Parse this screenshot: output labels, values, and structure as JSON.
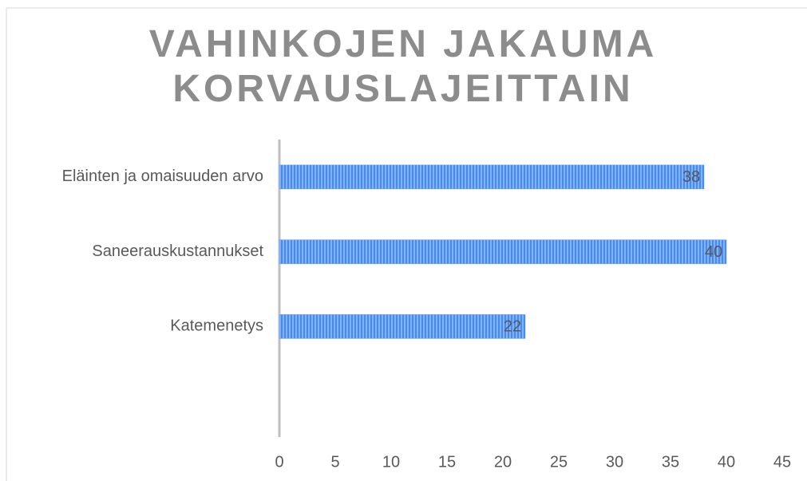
{
  "chart_data": {
    "type": "bar",
    "orientation": "horizontal",
    "title": "VAHINKOJEN JAKAUMA KORVAUSLAJEITTAIN",
    "categories": [
      "Eläinten ja omaisuuden arvo",
      "Saneerauskustannukset",
      "Katemenetys",
      null
    ],
    "values": [
      38,
      40,
      22,
      null
    ],
    "color": "#5b9bef",
    "xlim": [
      0,
      45
    ],
    "xticks": [
      0,
      5,
      10,
      15,
      20,
      25,
      30,
      35,
      40,
      45
    ],
    "grid": false
  }
}
